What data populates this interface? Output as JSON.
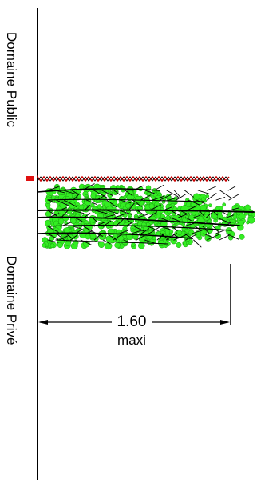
{
  "zones": {
    "public_label": "Domaine Public",
    "private_label": "Domaine Privé"
  },
  "dimension": {
    "value": "1.60",
    "note": "maxi"
  },
  "colors": {
    "line": "#000000",
    "foliage": "#33ee22",
    "fence_marker": "#e01010",
    "fence_wire": "#cc0000"
  }
}
